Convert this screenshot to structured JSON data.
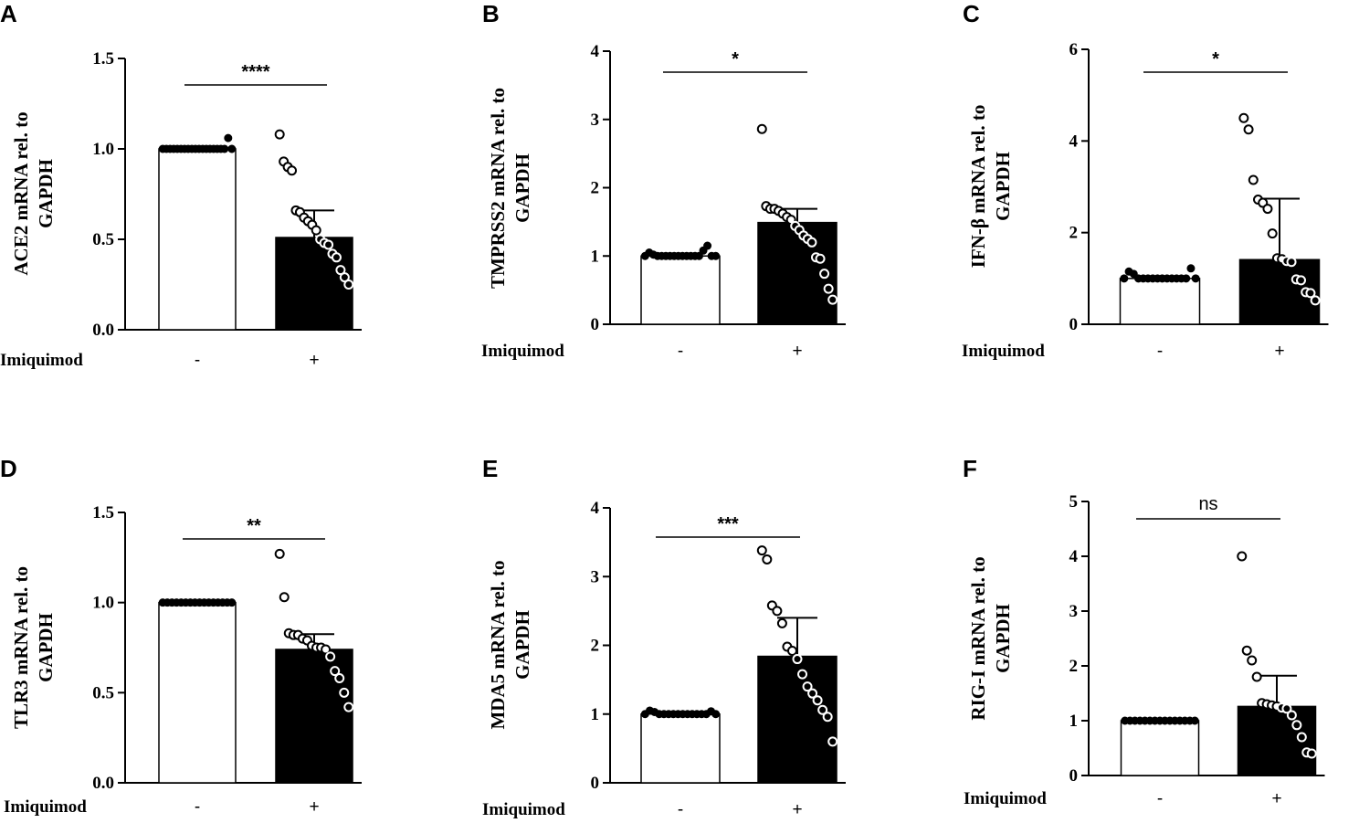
{
  "chart_data": [
    {
      "panel": "A",
      "type": "bar",
      "ylabel_line1": "ACE2 mRNA rel. to",
      "ylabel_line2": "GAPDH",
      "xlabel": "Imiquimod",
      "categories": [
        "-",
        "+"
      ],
      "ylim": [
        0,
        1.5
      ],
      "yticks": [
        "0.0",
        "0.5",
        "1.0",
        "1.5"
      ],
      "ytick_values": [
        0,
        0.5,
        1.0,
        1.5
      ],
      "series": [
        {
          "name": "-",
          "value": 1.0,
          "error": 0,
          "points": [
            1.0,
            1.0,
            1.0,
            1.0,
            1.0,
            1.0,
            1.0,
            1.0,
            1.0,
            1.0,
            1.0,
            1.0,
            1.0,
            1.0,
            1.0,
            1.0,
            1.0,
            1.0,
            1.06,
            1.0
          ]
        },
        {
          "name": "+",
          "value": 0.51,
          "error": 0.15,
          "points": [
            1.08,
            0.93,
            0.9,
            0.88,
            0.66,
            0.65,
            0.62,
            0.6,
            0.58,
            0.55,
            0.5,
            0.48,
            0.47,
            0.42,
            0.4,
            0.33,
            0.29,
            0.25
          ]
        }
      ],
      "significance": "****"
    },
    {
      "panel": "B",
      "type": "bar",
      "ylabel_line1": "TMPRSS2 mRNA rel. to",
      "ylabel_line2": "GAPDH",
      "xlabel": "Imiquimod",
      "categories": [
        "-",
        "+"
      ],
      "ylim": [
        0,
        4
      ],
      "yticks": [
        "0",
        "1",
        "2",
        "3",
        "4"
      ],
      "ytick_values": [
        0,
        1,
        2,
        3,
        4
      ],
      "series": [
        {
          "name": "-",
          "value": 1.0,
          "error": 0,
          "points": [
            1.0,
            1.05,
            1.02,
            1.0,
            1.0,
            1.0,
            1.0,
            1.0,
            1.0,
            1.0,
            1.0,
            1.0,
            1.0,
            1.0,
            1.08,
            1.15,
            1.0,
            1.0
          ]
        },
        {
          "name": "+",
          "value": 1.49,
          "error": 0.2,
          "points": [
            2.86,
            1.73,
            1.69,
            1.69,
            1.66,
            1.62,
            1.57,
            1.53,
            1.44,
            1.38,
            1.3,
            1.25,
            1.2,
            0.98,
            0.96,
            0.74,
            0.52,
            0.36
          ]
        }
      ],
      "significance": "*"
    },
    {
      "panel": "C",
      "type": "bar",
      "ylabel_line1": "IFN-β mRNA rel. to",
      "ylabel_line2": "GAPDH",
      "xlabel": "Imiquimod",
      "categories": [
        "-",
        "+"
      ],
      "ylim": [
        0,
        6
      ],
      "yticks": [
        "0",
        "2",
        "4",
        "6"
      ],
      "ytick_values": [
        0,
        2,
        4,
        6
      ],
      "series": [
        {
          "name": "-",
          "value": 1.0,
          "error": 0,
          "points": [
            1.0,
            1.15,
            1.1,
            1.0,
            1.0,
            1.0,
            1.0,
            1.0,
            1.0,
            1.0,
            1.0,
            1.0,
            1.0,
            1.0,
            1.22,
            1.0
          ]
        },
        {
          "name": "+",
          "value": 1.41,
          "error": 1.33,
          "points": [
            4.5,
            4.25,
            3.15,
            2.72,
            2.65,
            2.52,
            1.98,
            1.44,
            1.42,
            1.38,
            1.36,
            0.98,
            0.96,
            0.7,
            0.68,
            0.52
          ]
        }
      ],
      "significance": "*"
    },
    {
      "panel": "D",
      "type": "bar",
      "ylabel_line1": "TLR3 mRNA rel. to",
      "ylabel_line2": "GAPDH",
      "xlabel": "Imiquimod",
      "categories": [
        "-",
        "+"
      ],
      "ylim": [
        0,
        1.5
      ],
      "yticks": [
        "0.0",
        "0.5",
        "1.0",
        "1.5"
      ],
      "ytick_values": [
        0,
        0.5,
        1.0,
        1.5
      ],
      "series": [
        {
          "name": "-",
          "value": 1.0,
          "error": 0,
          "points": [
            1.0,
            1.0,
            1.0,
            1.0,
            1.0,
            1.0,
            1.0,
            1.0,
            1.0,
            1.0,
            1.0,
            1.0,
            1.0,
            1.0,
            1.0,
            1.0
          ]
        },
        {
          "name": "+",
          "value": 0.74,
          "error": 0.085,
          "points": [
            1.27,
            1.03,
            0.83,
            0.82,
            0.82,
            0.8,
            0.79,
            0.76,
            0.75,
            0.75,
            0.74,
            0.7,
            0.62,
            0.58,
            0.5,
            0.42
          ]
        }
      ],
      "significance": "**"
    },
    {
      "panel": "E",
      "type": "bar",
      "ylabel_line1": "MDA5 mRNA rel. to",
      "ylabel_line2": "GAPDH",
      "xlabel": "Imiquimod",
      "categories": [
        "-",
        "+"
      ],
      "ylim": [
        0,
        4
      ],
      "yticks": [
        "0",
        "1",
        "2",
        "3",
        "4"
      ],
      "ytick_values": [
        0,
        1,
        2,
        3,
        4
      ],
      "series": [
        {
          "name": "-",
          "value": 1.0,
          "error": 0,
          "points": [
            1.0,
            1.05,
            1.03,
            1.0,
            1.0,
            1.0,
            1.0,
            1.0,
            1.0,
            1.0,
            1.0,
            1.0,
            1.0,
            1.0,
            1.04,
            1.0
          ]
        },
        {
          "name": "+",
          "value": 1.84,
          "error": 0.56,
          "points": [
            3.38,
            3.25,
            2.58,
            2.5,
            2.32,
            1.98,
            1.92,
            1.8,
            1.58,
            1.4,
            1.3,
            1.2,
            1.06,
            0.96,
            0.6
          ]
        }
      ],
      "significance": "***"
    },
    {
      "panel": "F",
      "type": "bar",
      "ylabel_line1": "RIG-I mRNA rel. to",
      "ylabel_line2": "GAPDH",
      "xlabel": "Imiquimod",
      "categories": [
        "-",
        "+"
      ],
      "ylim": [
        0,
        5
      ],
      "yticks": [
        "0",
        "1",
        "2",
        "3",
        "4",
        "5"
      ],
      "ytick_values": [
        0,
        1,
        2,
        3,
        4,
        5
      ],
      "series": [
        {
          "name": "-",
          "value": 1.0,
          "error": 0,
          "points": [
            1.0,
            1.0,
            1.0,
            1.0,
            1.0,
            1.0,
            1.0,
            1.0,
            1.0,
            1.0,
            1.0,
            1.0,
            1.0,
            1.0,
            1.0
          ]
        },
        {
          "name": "+",
          "value": 1.26,
          "error": 0.56,
          "points": [
            4.0,
            2.28,
            2.1,
            1.8,
            1.32,
            1.3,
            1.28,
            1.26,
            1.24,
            1.22,
            1.1,
            0.92,
            0.7,
            0.42,
            0.4
          ]
        }
      ],
      "significance": "ns"
    }
  ]
}
